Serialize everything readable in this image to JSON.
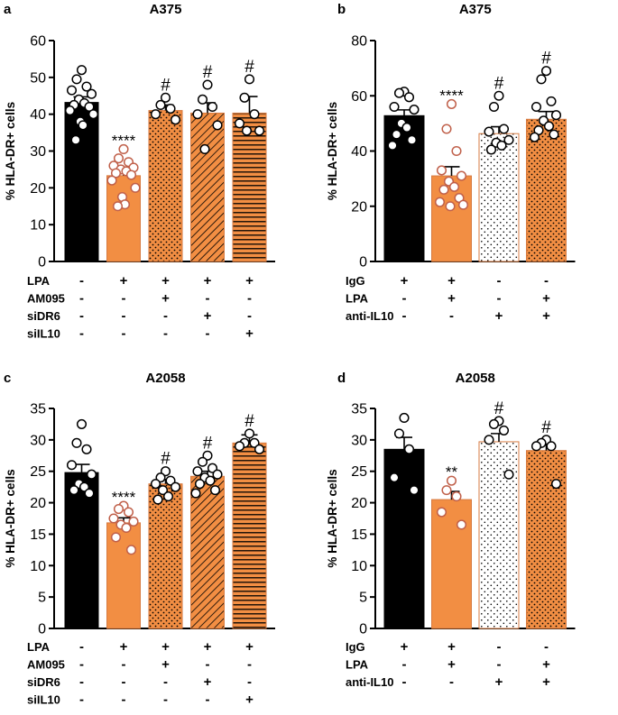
{
  "figure": {
    "colors": {
      "black": "#000000",
      "orange": "#F28E43",
      "white": "#FFFFFF",
      "point_orange_stroke": "#C0604A"
    }
  },
  "chart_data": [
    {
      "id": "a",
      "panel_letter": "a",
      "type": "bar",
      "title": "A375",
      "ylabel": "% HLA-DR+ cells",
      "ylim": [
        0,
        60
      ],
      "yticks": [
        0,
        10,
        20,
        30,
        40,
        50,
        60
      ],
      "rows": [
        {
          "label": "LPA",
          "marks": [
            "-",
            "+",
            "+",
            "+",
            "+"
          ]
        },
        {
          "label": "AM095",
          "marks": [
            "-",
            "-",
            "+",
            "-",
            "-"
          ]
        },
        {
          "label": "siDR6",
          "marks": [
            "-",
            "-",
            "-",
            "+",
            "-"
          ]
        },
        {
          "label": "siIL10",
          "marks": [
            "-",
            "-",
            "-",
            "-",
            "+"
          ]
        }
      ],
      "bars": [
        {
          "mean": 43.2,
          "sem": 1.5,
          "fill": "black",
          "sig": "",
          "points": [
            52,
            49.5,
            47.5,
            46.5,
            45.5,
            44,
            43,
            42.5,
            42,
            41,
            40,
            38,
            37,
            33
          ]
        },
        {
          "mean": 23.3,
          "sem": 1.3,
          "fill": "orange",
          "sig": "****",
          "points": [
            30.5,
            28,
            27,
            26,
            25.5,
            25,
            24.5,
            24,
            23.5,
            22,
            20,
            17.5,
            15.5,
            15
          ]
        },
        {
          "mean": 41.0,
          "sem": 1.5,
          "fill": "dots",
          "sig": "#",
          "points": [
            44.5,
            42.5,
            41.5,
            40,
            38.5
          ]
        },
        {
          "mean": 40.3,
          "sem": 2.8,
          "fill": "diag",
          "sig": "#",
          "points": [
            48,
            44,
            42,
            40,
            37,
            30.5
          ]
        },
        {
          "mean": 40.3,
          "sem": 4.5,
          "fill": "horiz",
          "sig": "#",
          "points": [
            49.5,
            44.5,
            40,
            37.5,
            35.5,
            35.5
          ]
        }
      ]
    },
    {
      "id": "b",
      "panel_letter": "b",
      "type": "bar",
      "title": "A375",
      "ylabel": "% HLA-DR+ cells",
      "ylim": [
        0,
        80
      ],
      "yticks": [
        0,
        20,
        40,
        60,
        80
      ],
      "rows": [
        {
          "label": "IgG",
          "marks": [
            "+",
            "+",
            "-",
            "-"
          ]
        },
        {
          "label": "LPA",
          "marks": [
            "-",
            "+",
            "-",
            "+"
          ]
        },
        {
          "label": "anti-IL10",
          "marks": [
            "-",
            "-",
            "+",
            "+"
          ]
        }
      ],
      "bars": [
        {
          "mean": 52.8,
          "sem": 2.1,
          "fill": "black",
          "sig": "",
          "points": [
            61.5,
            61,
            59.5,
            56,
            55,
            50,
            48.5,
            46,
            44,
            42
          ]
        },
        {
          "mean": 31.0,
          "sem": 3.3,
          "fill": "orange",
          "sig": "****",
          "points": [
            57,
            48,
            40,
            33,
            31,
            29,
            27,
            26,
            23,
            21.5,
            20.5,
            20
          ]
        },
        {
          "mean": 46.3,
          "sem": 2.5,
          "fill": "sparse_dots",
          "sig": "#",
          "points": [
            60,
            56,
            48,
            47,
            44,
            43,
            42,
            40.5
          ]
        },
        {
          "mean": 51.5,
          "sem": 2.8,
          "fill": "dots",
          "sig": "#",
          "points": [
            69,
            66,
            58,
            56,
            53,
            51,
            49,
            47.5,
            46,
            45
          ]
        }
      ]
    },
    {
      "id": "c",
      "panel_letter": "c",
      "type": "bar",
      "title": "A2058",
      "ylabel": "% HLA-DR+ cells",
      "ylim": [
        0,
        35
      ],
      "yticks": [
        0,
        5,
        10,
        15,
        20,
        25,
        30,
        35
      ],
      "rows": [
        {
          "label": "LPA",
          "marks": [
            "-",
            "+",
            "+",
            "+",
            "+"
          ]
        },
        {
          "label": "AM095",
          "marks": [
            "-",
            "-",
            "+",
            "-",
            "-"
          ]
        },
        {
          "label": "siDR6",
          "marks": [
            "-",
            "-",
            "-",
            "+",
            "-"
          ]
        },
        {
          "label": "siIL10",
          "marks": [
            "-",
            "-",
            "-",
            "-",
            "+"
          ]
        }
      ],
      "bars": [
        {
          "mean": 24.8,
          "sem": 1.3,
          "fill": "black",
          "sig": "",
          "points": [
            32.5,
            29.5,
            28.5,
            26,
            24.5,
            23,
            22.5,
            22,
            21.5
          ]
        },
        {
          "mean": 16.8,
          "sem": 0.8,
          "fill": "orange",
          "sig": "****",
          "points": [
            19.5,
            19,
            18.5,
            17.5,
            17,
            16.5,
            16,
            14.5,
            12.5
          ]
        },
        {
          "mean": 23.0,
          "sem": 0.7,
          "fill": "dots",
          "sig": "#",
          "points": [
            25,
            24,
            23.5,
            23,
            22.5,
            22,
            21,
            20.5
          ]
        },
        {
          "mean": 24.2,
          "sem": 0.8,
          "fill": "diag",
          "sig": "#",
          "points": [
            27.5,
            26.5,
            25.5,
            25,
            24.5,
            24,
            23.5,
            23,
            22,
            21.5
          ]
        },
        {
          "mean": 29.5,
          "sem": 1.3,
          "fill": "horiz",
          "sig": "#",
          "points": [
            31,
            29.5,
            29.5,
            29,
            28.5
          ]
        }
      ]
    },
    {
      "id": "d",
      "panel_letter": "d",
      "type": "bar",
      "title": "A2058",
      "ylabel": "% HLA-DR+ cells",
      "ylim": [
        0,
        35
      ],
      "yticks": [
        0,
        5,
        10,
        15,
        20,
        25,
        30,
        35
      ],
      "rows": [
        {
          "label": "IgG",
          "marks": [
            "+",
            "+",
            "-",
            "-"
          ]
        },
        {
          "label": "LPA",
          "marks": [
            "-",
            "+",
            "-",
            "+"
          ]
        },
        {
          "label": "anti-IL10",
          "marks": [
            "-",
            "-",
            "+",
            "+"
          ]
        }
      ],
      "bars": [
        {
          "mean": 28.5,
          "sem": 1.9,
          "fill": "black",
          "sig": "",
          "points": [
            33.5,
            31,
            28.5,
            24,
            22
          ]
        },
        {
          "mean": 20.5,
          "sem": 1.3,
          "fill": "orange",
          "sig": "**",
          "points": [
            23.5,
            22,
            21,
            18.5,
            16.5
          ]
        },
        {
          "mean": 29.7,
          "sem": 1.3,
          "fill": "sparse_dots",
          "sig": "#",
          "points": [
            33,
            32.5,
            31.5,
            30,
            24.5
          ]
        },
        {
          "mean": 28.3,
          "sem": 1.2,
          "fill": "dots",
          "sig": "#",
          "points": [
            30,
            29.5,
            29,
            29,
            23
          ]
        }
      ]
    }
  ]
}
